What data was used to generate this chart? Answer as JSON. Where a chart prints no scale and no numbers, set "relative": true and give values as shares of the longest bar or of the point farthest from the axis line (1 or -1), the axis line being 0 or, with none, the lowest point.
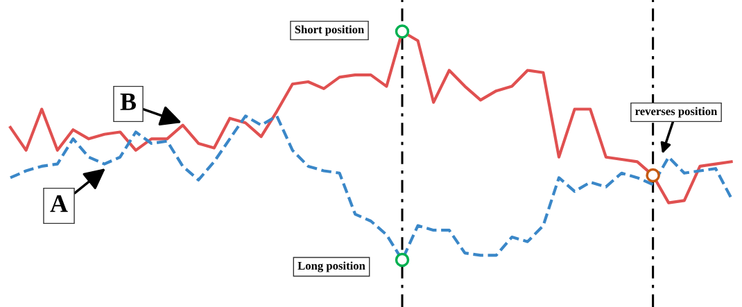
{
  "chart_data": {
    "type": "line",
    "relative": true,
    "legend": false,
    "grid": false,
    "categories": [
      null,
      null,
      null,
      null,
      null,
      null,
      null,
      null,
      null,
      null,
      null,
      null,
      null,
      null,
      null,
      null,
      null,
      null,
      null,
      null,
      null,
      null,
      null,
      null,
      null,
      null,
      null,
      null,
      null,
      null,
      null,
      null,
      null,
      null,
      null,
      null,
      null,
      null,
      null,
      null,
      null,
      null,
      null,
      null,
      null,
      null,
      null
    ],
    "series": [
      {
        "color": "#e05050",
        "line_style": "solid",
        "values": [
          0.58,
          0.48,
          0.66,
          0.48,
          0.57,
          0.53,
          0.55,
          0.56,
          0.48,
          0.53,
          0.53,
          0.59,
          0.51,
          0.49,
          0.62,
          0.6,
          0.54,
          0.65,
          0.77,
          0.78,
          0.75,
          0.8,
          0.81,
          0.81,
          0.76,
          1,
          0.96,
          0.69,
          0.83,
          0.76,
          0.7,
          0.74,
          0.76,
          0.83,
          0.82,
          0.45,
          0.66,
          0.66,
          0.45,
          0.44,
          0.43,
          0.37,
          0.25,
          0.26,
          0.41,
          0.42,
          0.43
        ]
      },
      {
        "color": "#3a87c8",
        "line_style": "dashed",
        "values": [
          0.36,
          0.39,
          0.41,
          0.42,
          0.53,
          0.45,
          0.42,
          0.45,
          0.56,
          0.51,
          0.52,
          0.41,
          0.35,
          0.43,
          0.53,
          0.63,
          0.59,
          0.63,
          0.48,
          0.41,
          0.39,
          0.38,
          0.2,
          0.17,
          0.11,
          0,
          0.15,
          0.13,
          0.13,
          0.03,
          0.02,
          0.02,
          0.1,
          0.08,
          0.15,
          0.36,
          0.3,
          0.34,
          0.32,
          0.38,
          0.36,
          0.33,
          0.45,
          0.38,
          0.39,
          0.4,
          0.27
        ]
      }
    ],
    "annotations": [
      "Short position",
      "Long position",
      "reverses position",
      "A",
      "B"
    ]
  }
}
